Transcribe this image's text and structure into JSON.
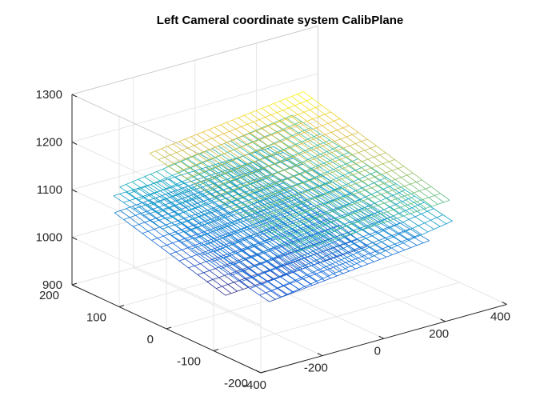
{
  "chart_data": {
    "type": "surface3d",
    "title": "Left Cameral coordinate system CalibPlane",
    "xlabel": "",
    "ylabel": "",
    "zlabel": "",
    "grid": true,
    "colormap": "parula",
    "xlim": [
      -400,
      400
    ],
    "ylim": [
      -200,
      200
    ],
    "zlim": [
      900,
      1300
    ],
    "x_ticks": [
      -400,
      -200,
      0,
      200,
      400
    ],
    "y_ticks": [
      -200,
      -100,
      0,
      100,
      200
    ],
    "z_ticks": [
      900,
      1000,
      1100,
      1200,
      1300
    ],
    "x_tick_labels": [
      "-400",
      "-200",
      "0",
      "200",
      "400"
    ],
    "y_tick_labels": [
      "-200",
      "-100",
      "0",
      "100",
      "200"
    ],
    "z_tick_labels": [
      "900",
      "1000",
      "1100",
      "1200",
      "1300"
    ],
    "planes": [
      {
        "x": [
          -300,
          160
        ],
        "y": [
          -60,
          175
        ],
        "z_corners": [
          [
            980,
            1000
          ],
          [
            1045,
            1070
          ]
        ],
        "mesh": [
          24,
          12
        ]
      },
      {
        "x": [
          -280,
          240
        ],
        "y": [
          -140,
          190
        ],
        "z_corners": [
          [
            1000,
            1035
          ],
          [
            1070,
            1080
          ]
        ],
        "mesh": [
          26,
          16
        ]
      },
      {
        "x": [
          -260,
          300
        ],
        "y": [
          -150,
          190
        ],
        "z_corners": [
          [
            1010,
            1070
          ],
          [
            1085,
            1135
          ]
        ],
        "mesh": [
          28,
          17
        ]
      },
      {
        "x": [
          -240,
          260
        ],
        "y": [
          -170,
          140
        ],
        "z_corners": [
          [
            1110,
            1130
          ],
          [
            1175,
            1215
          ]
        ],
        "mesh": [
          26,
          16
        ]
      }
    ]
  }
}
